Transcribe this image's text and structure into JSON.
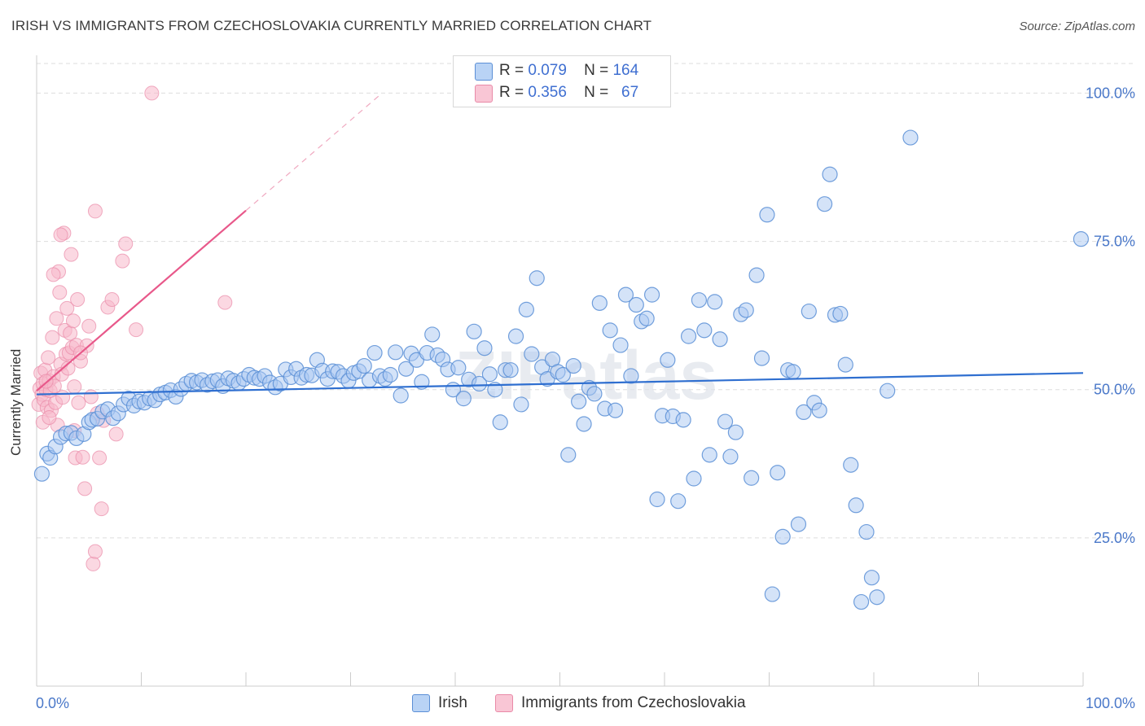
{
  "title": "IRISH VS IMMIGRANTS FROM CZECHOSLOVAKIA CURRENTLY MARRIED CORRELATION CHART",
  "source": "Source: ZipAtlas.com",
  "watermark": "ZIPatlas",
  "stats": {
    "irish": {
      "r_label": "R =",
      "r_value": "0.079",
      "n_label": "N =",
      "n_value": "164"
    },
    "czech": {
      "r_label": "R =",
      "r_value": "0.356",
      "n_label": "N =",
      "n_value": "67"
    }
  },
  "legend": {
    "irish": "Irish",
    "czech": "Immigrants from Czechoslovakia"
  },
  "colors": {
    "irish_fill": "#a9c8f2",
    "irish_stroke": "#5b8fd6",
    "irish_line": "#2f6fd0",
    "czech_fill": "#f7b8cb",
    "czech_stroke": "#e98aa8",
    "czech_line": "#e8588a",
    "tick_label": "#4a78c9",
    "grid": "#dddddd"
  },
  "chart_data": {
    "type": "scatter",
    "title": "IRISH VS IMMIGRANTS FROM CZECHOSLOVAKIA CURRENTLY MARRIED CORRELATION CHART",
    "xlabel": "",
    "ylabel": "Currently Married",
    "xlim": [
      0,
      100
    ],
    "ylim": [
      0,
      105
    ],
    "x_tick_labels": [
      "0.0%",
      "100.0%"
    ],
    "y_tick_labels": [
      "25.0%",
      "50.0%",
      "75.0%",
      "100.0%"
    ],
    "y_ticks": [
      25,
      50,
      75,
      100
    ],
    "grid": true,
    "legend_position": "bottom",
    "series": [
      {
        "name": "Irish",
        "trend": {
          "x": [
            0,
            100
          ],
          "y": [
            49.2,
            52.8
          ]
        },
        "points": [
          [
            0.5,
            35.8
          ],
          [
            1,
            39.2
          ],
          [
            1.3,
            38.5
          ],
          [
            1.8,
            40.4
          ],
          [
            2.3,
            42
          ],
          [
            2.8,
            42.6
          ],
          [
            3.3,
            42.7
          ],
          [
            3.8,
            41.8
          ],
          [
            4.5,
            42.5
          ],
          [
            5,
            44.5
          ],
          [
            5.3,
            44.9
          ],
          [
            5.8,
            45.1
          ],
          [
            6.3,
            46.3
          ],
          [
            6.8,
            46.7
          ],
          [
            7.3,
            45.2
          ],
          [
            7.8,
            46
          ],
          [
            8.3,
            47.5
          ],
          [
            8.8,
            48.5
          ],
          [
            9.3,
            47.3
          ],
          [
            9.8,
            48
          ],
          [
            10.3,
            47.8
          ],
          [
            10.8,
            48.5
          ],
          [
            11.3,
            48.2
          ],
          [
            11.8,
            49.2
          ],
          [
            12.3,
            49.5
          ],
          [
            12.8,
            49.9
          ],
          [
            13.3,
            48.8
          ],
          [
            13.8,
            50.1
          ],
          [
            14.3,
            51
          ],
          [
            14.8,
            51.5
          ],
          [
            15.3,
            51.2
          ],
          [
            15.8,
            51.6
          ],
          [
            16.3,
            50.8
          ],
          [
            16.8,
            51.4
          ],
          [
            17.3,
            51.6
          ],
          [
            17.8,
            50.6
          ],
          [
            18.3,
            51.9
          ],
          [
            18.8,
            51.5
          ],
          [
            19.3,
            51.1
          ],
          [
            19.8,
            51.8
          ],
          [
            20.3,
            52.5
          ],
          [
            20.8,
            52
          ],
          [
            21.3,
            51.8
          ],
          [
            21.8,
            52.3
          ],
          [
            22.3,
            51.2
          ],
          [
            22.8,
            50.4
          ],
          [
            23.3,
            51
          ],
          [
            23.8,
            53.4
          ],
          [
            24.3,
            52.1
          ],
          [
            24.8,
            53.5
          ],
          [
            25.3,
            52
          ],
          [
            25.8,
            52.5
          ],
          [
            26.3,
            52.4
          ],
          [
            26.8,
            55
          ],
          [
            27.3,
            53.2
          ],
          [
            27.8,
            51.8
          ],
          [
            28.3,
            53.1
          ],
          [
            28.8,
            53
          ],
          [
            29.3,
            52.3
          ],
          [
            29.8,
            51.5
          ],
          [
            30.3,
            52.8
          ],
          [
            30.8,
            53.1
          ],
          [
            31.3,
            54
          ],
          [
            31.8,
            51.6
          ],
          [
            32.3,
            56.2
          ],
          [
            32.8,
            52.3
          ],
          [
            33.3,
            51.8
          ],
          [
            33.8,
            52.5
          ],
          [
            34.3,
            56.3
          ],
          [
            34.8,
            49
          ],
          [
            35.3,
            53.5
          ],
          [
            35.8,
            56.1
          ],
          [
            36.3,
            55
          ],
          [
            36.8,
            51.3
          ],
          [
            37.3,
            56.2
          ],
          [
            37.8,
            59.3
          ],
          [
            38.3,
            55.8
          ],
          [
            38.8,
            55.1
          ],
          [
            39.3,
            53.4
          ],
          [
            39.8,
            50
          ],
          [
            40.3,
            53.7
          ],
          [
            40.8,
            48.5
          ],
          [
            41.3,
            51.7
          ],
          [
            41.8,
            59.8
          ],
          [
            42.3,
            51
          ],
          [
            42.8,
            57
          ],
          [
            43.3,
            52.6
          ],
          [
            43.8,
            50
          ],
          [
            44.3,
            44.5
          ],
          [
            44.8,
            53.3
          ],
          [
            45.3,
            53.3
          ],
          [
            45.8,
            59
          ],
          [
            46.3,
            47.5
          ],
          [
            46.8,
            63.5
          ],
          [
            47.3,
            56
          ],
          [
            47.8,
            68.8
          ],
          [
            48.3,
            53.8
          ],
          [
            48.8,
            51.8
          ],
          [
            49.3,
            55.1
          ],
          [
            49.8,
            53
          ],
          [
            50.3,
            52.5
          ],
          [
            50.8,
            39
          ],
          [
            51.3,
            54
          ],
          [
            51.8,
            48
          ],
          [
            52.3,
            44.2
          ],
          [
            52.8,
            50.3
          ],
          [
            53.3,
            49.3
          ],
          [
            53.8,
            64.6
          ],
          [
            54.3,
            46.8
          ],
          [
            54.8,
            60
          ],
          [
            55.3,
            46.5
          ],
          [
            55.8,
            57.5
          ],
          [
            56.3,
            66
          ],
          [
            56.8,
            52.3
          ],
          [
            57.3,
            64.3
          ],
          [
            57.8,
            61.5
          ],
          [
            58.3,
            62
          ],
          [
            58.8,
            66
          ],
          [
            59.3,
            31.5
          ],
          [
            59.8,
            45.6
          ],
          [
            60.3,
            55
          ],
          [
            60.8,
            45.5
          ],
          [
            61.3,
            31.2
          ],
          [
            61.8,
            44.9
          ],
          [
            62.3,
            59
          ],
          [
            62.8,
            35
          ],
          [
            63.3,
            65.1
          ],
          [
            63.8,
            60
          ],
          [
            64.3,
            39
          ],
          [
            64.8,
            64.8
          ],
          [
            65.3,
            58.5
          ],
          [
            65.8,
            44.6
          ],
          [
            66.3,
            38.7
          ],
          [
            66.8,
            42.8
          ],
          [
            67.3,
            62.7
          ],
          [
            67.8,
            63.4
          ],
          [
            68.3,
            35.1
          ],
          [
            68.8,
            69.3
          ],
          [
            69.3,
            55.3
          ],
          [
            69.8,
            79.5
          ],
          [
            70.3,
            15.5
          ],
          [
            70.8,
            36
          ],
          [
            71.3,
            25.2
          ],
          [
            71.8,
            53.3
          ],
          [
            72.3,
            53
          ],
          [
            72.8,
            27.3
          ],
          [
            73.3,
            46.2
          ],
          [
            73.8,
            63.2
          ],
          [
            74.3,
            47.8
          ],
          [
            74.8,
            46.5
          ],
          [
            75.3,
            81.3
          ],
          [
            75.8,
            86.3
          ],
          [
            76.3,
            62.6
          ],
          [
            76.8,
            62.8
          ],
          [
            77.3,
            54.2
          ],
          [
            77.8,
            37.3
          ],
          [
            78.3,
            30.5
          ],
          [
            78.8,
            14.2
          ],
          [
            79.3,
            26
          ],
          [
            79.8,
            18.3
          ],
          [
            80.3,
            15
          ],
          [
            81.3,
            49.8
          ],
          [
            83.5,
            92.5
          ],
          [
            99.8,
            75.4
          ]
        ]
      },
      {
        "name": "Immigrants from Czechoslovakia",
        "trend": {
          "x": [
            0,
            20
          ],
          "y": [
            49.8,
            80.2
          ]
        },
        "trend_dashed": {
          "x": [
            20,
            33
          ],
          "y": [
            80.2,
            100
          ]
        },
        "points": [
          [
            0.2,
            47.5
          ],
          [
            0.3,
            50.2
          ],
          [
            0.4,
            52.8
          ],
          [
            0.5,
            49.2
          ],
          [
            0.6,
            51
          ],
          [
            0.7,
            48.3
          ],
          [
            0.8,
            53.3
          ],
          [
            0.9,
            50
          ],
          [
            1,
            47
          ],
          [
            1.1,
            55.4
          ],
          [
            1.2,
            51.5
          ],
          [
            1.3,
            49.8
          ],
          [
            1.4,
            46.5
          ],
          [
            1.5,
            58.8
          ],
          [
            1.6,
            52.2
          ],
          [
            1.7,
            50.6
          ],
          [
            1.8,
            47.8
          ],
          [
            1.9,
            62
          ],
          [
            2,
            44
          ],
          [
            2.1,
            69.9
          ],
          [
            2.2,
            66.4
          ],
          [
            2.3,
            54.3
          ],
          [
            2.4,
            52.6
          ],
          [
            2.5,
            48.7
          ],
          [
            2.6,
            76.4
          ],
          [
            2.7,
            60
          ],
          [
            2.8,
            56
          ],
          [
            2.9,
            63.7
          ],
          [
            3,
            53.6
          ],
          [
            3.1,
            56.2
          ],
          [
            3.2,
            59.5
          ],
          [
            3.3,
            72.8
          ],
          [
            3.4,
            57.1
          ],
          [
            3.5,
            61.6
          ],
          [
            3.6,
            50.5
          ],
          [
            3.7,
            38.5
          ],
          [
            3.8,
            57.5
          ],
          [
            3.9,
            65.2
          ],
          [
            4,
            47.8
          ],
          [
            4.2,
            54.8
          ],
          [
            4.4,
            38.6
          ],
          [
            4.6,
            33.3
          ],
          [
            4.8,
            57.4
          ],
          [
            5,
            60.7
          ],
          [
            5.2,
            48.8
          ],
          [
            5.4,
            20.6
          ],
          [
            5.6,
            22.7
          ],
          [
            5.8,
            46
          ],
          [
            6,
            38.5
          ],
          [
            5.6,
            80.1
          ],
          [
            6.2,
            29.9
          ],
          [
            6.4,
            44.8
          ],
          [
            6.8,
            63.9
          ],
          [
            7.2,
            65.2
          ],
          [
            7.6,
            42.5
          ],
          [
            8.2,
            71.7
          ],
          [
            8.5,
            74.6
          ],
          [
            9.5,
            60.1
          ],
          [
            11,
            100
          ],
          [
            18,
            64.7
          ],
          [
            0.6,
            44.5
          ],
          [
            1.6,
            69.4
          ],
          [
            2.3,
            76.1
          ],
          [
            0.9,
            51.4
          ],
          [
            1.2,
            45.3
          ],
          [
            3.6,
            43.1
          ],
          [
            4.2,
            56.2
          ]
        ]
      }
    ]
  }
}
